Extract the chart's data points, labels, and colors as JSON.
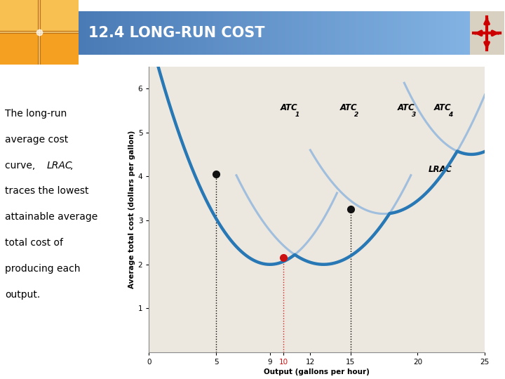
{
  "title": "12.4 LONG-RUN COST",
  "title_text_color": "#ffffff",
  "ylabel": "Average total cost (dollars per gallon)",
  "xlabel": "Output (gallons per hour)",
  "xlim": [
    0,
    25
  ],
  "ylim": [
    0,
    6.5
  ],
  "chart_bg": "#ede8df",
  "atc_light_color": "#a0bedd",
  "atc_dark_color": "#2878b5",
  "body_text_line1": "The long-run",
  "body_text_line2": "average cost",
  "body_text_line3": "curve, ",
  "body_text_line3_italic": "LRAC,",
  "body_text_lines": [
    "The long-run",
    "average cost",
    "curve, LRAC,",
    "traces the lowest",
    "attainable average",
    "total cost of",
    "producing each",
    "output."
  ],
  "logo_colors": [
    "#f5a020",
    "#e08010",
    "#ffd060"
  ],
  "bar_color_left": "#4a7ab5",
  "bar_color_right": "#7aaad5"
}
